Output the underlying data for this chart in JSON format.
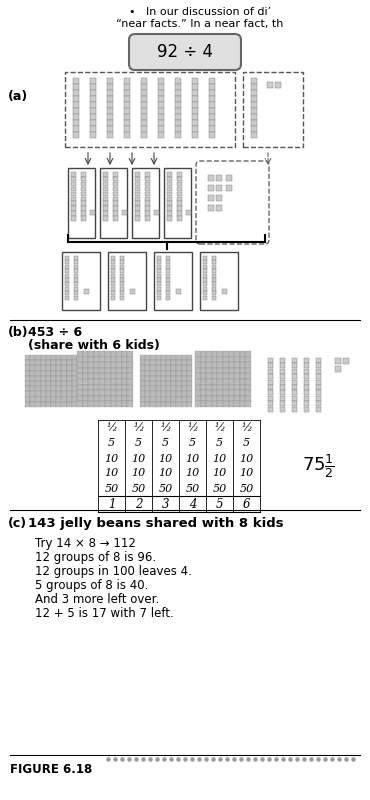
{
  "section_a_label": "(a)",
  "section_a_problem": "92 ÷ 4",
  "section_b_label": "(b)",
  "section_b_problem": "453 ÷ 6",
  "section_b_subtitle": "(share with 6 kids)",
  "section_c_label": "(c)",
  "section_c_title": "143 jelly beans shared with 8 kids",
  "section_c_lines": [
    "Try 14 × 8 → 112",
    "12 groups of 8 is 96.",
    "12 groups in 100 leaves 4.",
    "5 groups of 8 is 40.",
    "And 3 more left over.",
    "12 + 5 is 17 with 7 left."
  ],
  "figure_label": "FIGURE 6.18",
  "table_rows": [
    [
      "½",
      "½",
      "½",
      "½",
      "½",
      "½"
    ],
    [
      "5",
      "5",
      "5",
      "5",
      "5",
      "5"
    ],
    [
      "10",
      "10",
      "10",
      "10",
      "10",
      "10"
    ],
    [
      "10",
      "10",
      "10",
      "10",
      "10",
      "10"
    ],
    [
      "50",
      "50",
      "50",
      "50",
      "50",
      "50"
    ],
    [
      "1",
      "2",
      "3",
      "4",
      "5",
      "6"
    ]
  ],
  "bg_color": "#ffffff"
}
